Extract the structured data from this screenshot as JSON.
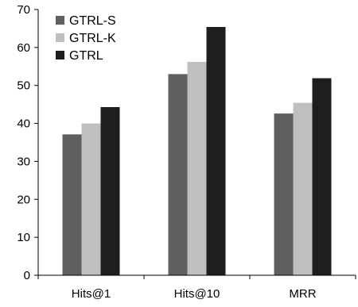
{
  "chart_data": {
    "type": "bar",
    "categories": [
      "Hits@1",
      "Hits@10",
      "MRR"
    ],
    "series": [
      {
        "name": "GTRL-S",
        "values": [
          37.1,
          53.0,
          42.6
        ],
        "color": "#5f5f5f"
      },
      {
        "name": "GTRL-K",
        "values": [
          40.0,
          56.2,
          45.4
        ],
        "color": "#bfbfbf"
      },
      {
        "name": "GTRL",
        "values": [
          44.3,
          65.4,
          51.9
        ],
        "color": "#1e1e1e"
      }
    ],
    "ylim": [
      0,
      70
    ],
    "yticks": [
      0,
      10,
      20,
      30,
      40,
      50,
      60,
      70
    ],
    "legend_position": "top-left",
    "grid": false
  }
}
